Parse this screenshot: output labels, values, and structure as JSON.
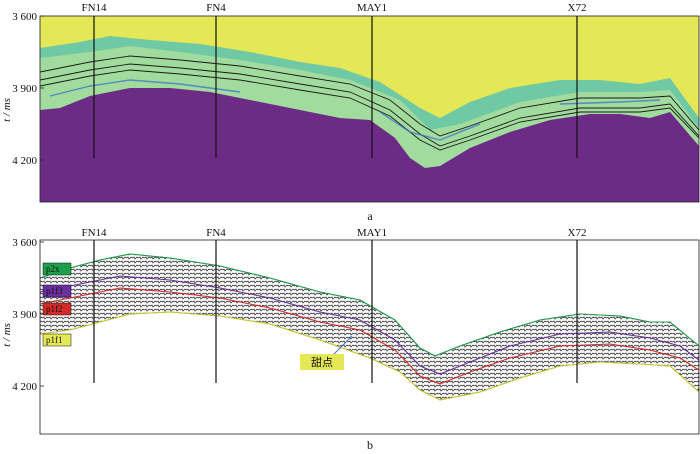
{
  "panel_a": {
    "label": "a",
    "y_axis_label": "t / ms",
    "y_ticks": [
      "3 600",
      "3 900",
      "4 200"
    ],
    "wells": [
      "FN14",
      "FN4",
      "MAY1",
      "X72"
    ],
    "colors": {
      "upper": "#E4E756",
      "lower": "#6C2C86",
      "band": "#6EC9A4",
      "band_light": "#B6E39A",
      "blue": "#3C6FC8"
    }
  },
  "panel_b": {
    "label": "b",
    "y_axis_label": "t / ms",
    "y_ticks": [
      "3 600",
      "3 900",
      "4 200"
    ],
    "wells": [
      "FN14",
      "FN4",
      "MAY1",
      "X72"
    ],
    "horizons": [
      {
        "name": "p2x",
        "color": "#1E9F4C"
      },
      {
        "name": "p1f3",
        "color": "#6B2FA0"
      },
      {
        "name": "p1f2",
        "color": "#D42A2A"
      },
      {
        "name": "p1f1",
        "color": "#E4E756"
      }
    ],
    "annotation": "甜点"
  }
}
